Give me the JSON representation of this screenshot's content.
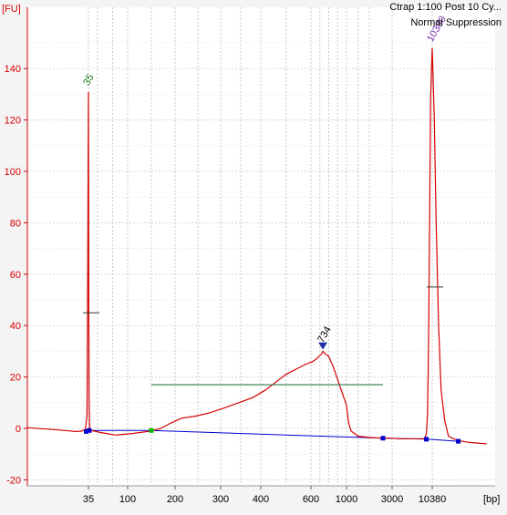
{
  "info_lines": [
    "Ctrap 1:100 Post 10 Cy...",
    "Normal Suppression"
  ],
  "chart_data": {
    "type": "line",
    "title": "Ctrap 1:100 Post 10 Cy...",
    "subtitle": "Normal Suppression",
    "ylabel": "[FU]",
    "xlabel": "[bp]",
    "ylim": [
      -22,
      162
    ],
    "yticks": [
      -20,
      0,
      20,
      40,
      60,
      80,
      100,
      120,
      140
    ],
    "xticks": [
      "35",
      "100",
      "200",
      "300",
      "400",
      "600",
      "1000",
      "3000",
      "10380"
    ],
    "grid": true,
    "colors": {
      "trace": "#d40000",
      "baseline": "#0000cc",
      "smear": "#2a7a4a",
      "marker": "#0000cc",
      "start": "#00bb00"
    },
    "peak_labels": [
      {
        "label": "35",
        "bp": 35,
        "fu": 131,
        "color": "#1a7a1a"
      },
      {
        "label": "734",
        "bp": 734,
        "fu": 31,
        "color": "#000000"
      },
      {
        "label": "10380",
        "bp": 10380,
        "fu": 148,
        "color": "#7a2aaa"
      }
    ],
    "series": [
      {
        "points": [
          [
            -6,
            0.3
          ],
          [
            8,
            -0.3
          ],
          [
            23,
            -1
          ],
          [
            26,
            -1.2
          ],
          [
            30,
            -1.1
          ],
          [
            33,
            -0.4
          ],
          [
            34,
            5
          ],
          [
            34.5,
            60
          ],
          [
            35,
            131
          ],
          [
            35.5,
            60
          ],
          [
            36,
            12
          ],
          [
            37,
            0
          ],
          [
            40,
            -0.8
          ],
          [
            55,
            -1.6
          ],
          [
            80,
            -2.6
          ],
          [
            110,
            -2
          ],
          [
            150,
            -1
          ],
          [
            170,
            0
          ],
          [
            190,
            2
          ],
          [
            215,
            4
          ],
          [
            245,
            4.8
          ],
          [
            275,
            6
          ],
          [
            310,
            8
          ],
          [
            345,
            10
          ],
          [
            380,
            12
          ],
          [
            420,
            15
          ],
          [
            460,
            18
          ],
          [
            500,
            21
          ],
          [
            540,
            23
          ],
          [
            580,
            25
          ],
          [
            620,
            26
          ],
          [
            660,
            27
          ],
          [
            690,
            28
          ],
          [
            720,
            29
          ],
          [
            734,
            30
          ],
          [
            760,
            29
          ],
          [
            800,
            28
          ],
          [
            850,
            24
          ],
          [
            900,
            19
          ],
          [
            950,
            14
          ],
          [
            1000,
            9
          ],
          [
            1050,
            5
          ],
          [
            1100,
            2
          ],
          [
            1200,
            -1
          ],
          [
            1500,
            -3
          ],
          [
            2000,
            -3.5
          ],
          [
            2500,
            -3.8
          ],
          [
            3000,
            -3.8
          ],
          [
            4000,
            -4
          ],
          [
            6000,
            -4
          ],
          [
            9000,
            -4
          ],
          [
            9300,
            -2
          ],
          [
            9500,
            5
          ],
          [
            9700,
            30
          ],
          [
            9900,
            80
          ],
          [
            10100,
            130
          ],
          [
            10380,
            148
          ],
          [
            10550,
            120
          ],
          [
            10700,
            80
          ],
          [
            10900,
            40
          ],
          [
            11100,
            15
          ],
          [
            11400,
            3
          ],
          [
            11700,
            -3
          ],
          [
            12100,
            -4
          ],
          [
            12800,
            -5
          ],
          [
            13500,
            -5.5
          ],
          [
            14800,
            -6
          ]
        ]
      }
    ],
    "baseline": [
      [
        33.5,
        -1.2
      ],
      [
        36.5,
        -0.8
      ],
      [
        150,
        -0.8
      ],
      [
        2600,
        -3.8
      ],
      [
        9300,
        -4.2
      ],
      [
        12500,
        -5
      ]
    ],
    "smear_region": {
      "from_bp": 150,
      "to_bp": 2600,
      "fu": 17
    },
    "peak_dashes": [
      {
        "bp": 35,
        "fu": 45
      },
      {
        "bp": 10380,
        "fu": 55
      }
    ]
  }
}
